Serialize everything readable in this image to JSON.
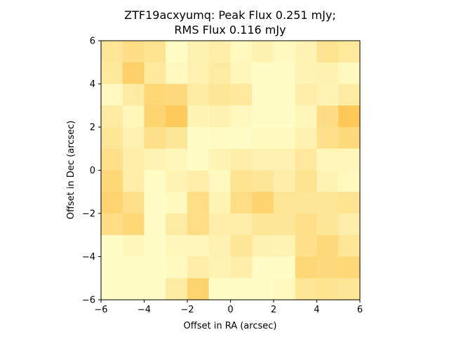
{
  "chart_data": {
    "type": "heatmap",
    "title_line1": "ZTF19acxyumq: Peak Flux 0.251 mJy;",
    "title_line2": "RMS Flux 0.116 mJy",
    "xlabel": "Offset in RA (arcsec)",
    "ylabel": "Offset in Dec (arcsec)",
    "xlim": [
      -6,
      6
    ],
    "ylim": [
      -6,
      6
    ],
    "xticks": [
      -6,
      -4,
      -2,
      0,
      2,
      4,
      6
    ],
    "yticks": [
      -6,
      -4,
      -2,
      0,
      2,
      4,
      6
    ],
    "xtick_labels": [
      "−6",
      "−4",
      "−2",
      "0",
      "2",
      "4",
      "6"
    ],
    "ytick_labels": [
      "−6",
      "−4",
      "−2",
      "0",
      "2",
      "4",
      "6"
    ],
    "grid": false,
    "colormap": "YlOrBr",
    "colors": {
      "low": "#ffffcc",
      "mid": "#fee391",
      "high": "#fec44f"
    },
    "rows_top_to_bottom": [
      [
        0.45,
        0.6,
        0.5,
        0.05,
        0.25,
        0.3,
        0.1,
        0.25,
        0.1,
        0.2,
        0.5,
        0.4
      ],
      [
        0.4,
        0.8,
        0.4,
        0.1,
        0.25,
        0.35,
        0.15,
        0.05,
        0.05,
        0.2,
        0.25,
        0.1
      ],
      [
        0.1,
        0.35,
        0.7,
        0.65,
        0.35,
        0.45,
        0.4,
        0.05,
        0.05,
        0.3,
        0.2,
        0.35
      ],
      [
        0.35,
        0.15,
        0.75,
        0.9,
        0.2,
        0.25,
        0.1,
        0.05,
        0.05,
        0.15,
        0.6,
        0.95
      ],
      [
        0.45,
        0.25,
        0.55,
        0.45,
        0.05,
        0.08,
        0.05,
        0.1,
        0.1,
        0.25,
        0.55,
        0.65
      ],
      [
        0.55,
        0.3,
        0.2,
        0.15,
        0.05,
        0.2,
        0.3,
        0.25,
        0.25,
        0.4,
        0.15,
        0.15
      ],
      [
        0.7,
        0.3,
        0.05,
        0.2,
        0.3,
        0.1,
        0.5,
        0.45,
        0.3,
        0.5,
        0.2,
        0.1
      ],
      [
        0.75,
        0.55,
        0.05,
        0.1,
        0.6,
        0.2,
        0.6,
        0.75,
        0.45,
        0.45,
        0.45,
        0.5
      ],
      [
        0.6,
        0.7,
        0.05,
        0.35,
        0.6,
        0.3,
        0.3,
        0.45,
        0.45,
        0.55,
        0.45,
        0.3
      ],
      [
        0.05,
        0.15,
        0.05,
        0.15,
        0.15,
        0.25,
        0.45,
        0.25,
        0.2,
        0.55,
        0.65,
        0.45
      ],
      [
        0.05,
        0.05,
        0.05,
        0.1,
        0.3,
        0.2,
        0.3,
        0.05,
        0.05,
        0.7,
        0.65,
        0.7
      ],
      [
        0.05,
        0.05,
        0.05,
        0.35,
        0.75,
        0.05,
        0.05,
        0.05,
        0.1,
        0.45,
        0.5,
        0.45
      ]
    ]
  }
}
